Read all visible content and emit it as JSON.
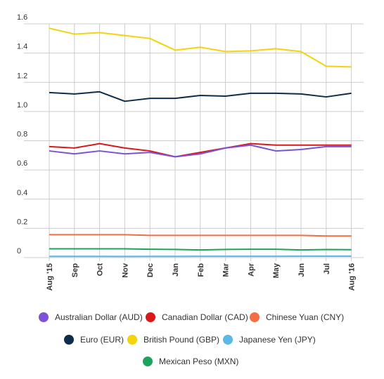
{
  "chart_data": {
    "type": "line",
    "title": "",
    "xlabel": "",
    "ylabel": "",
    "categories": [
      "Aug '15",
      "Sep",
      "Oct",
      "Nov",
      "Dec",
      "Jan",
      "Feb",
      "Mar",
      "Apr",
      "May",
      "Jun",
      "Jul",
      "Aug '16"
    ],
    "ylim": [
      0,
      1.6
    ],
    "yticks": [
      0,
      0.2,
      0.4,
      0.6,
      0.8,
      1.0,
      1.2,
      1.4,
      1.6
    ],
    "ytick_labels": [
      "0",
      "0.2",
      "0.4",
      "0.6",
      "0.8",
      "1.0",
      "1.2",
      "1.4",
      "1.6"
    ],
    "grid": true,
    "legend_position": "bottom",
    "series": [
      {
        "name": "Australian Dollar (AUD)",
        "color": "#7b52d8",
        "values": [
          0.73,
          0.71,
          0.73,
          0.71,
          0.72,
          0.69,
          0.71,
          0.75,
          0.77,
          0.73,
          0.74,
          0.76,
          0.76
        ]
      },
      {
        "name": "Canadian Dollar (CAD)",
        "color": "#d7191c",
        "values": [
          0.76,
          0.75,
          0.78,
          0.75,
          0.73,
          0.69,
          0.72,
          0.75,
          0.78,
          0.77,
          0.77,
          0.77,
          0.77
        ]
      },
      {
        "name": "Chinese Yuan (CNY)",
        "color": "#f46d43",
        "values": [
          0.157,
          0.157,
          0.157,
          0.157,
          0.152,
          0.152,
          0.152,
          0.152,
          0.152,
          0.152,
          0.152,
          0.148,
          0.148
        ]
      },
      {
        "name": "Euro (EUR)",
        "color": "#0d2d4c",
        "values": [
          1.13,
          1.12,
          1.135,
          1.07,
          1.09,
          1.09,
          1.11,
          1.105,
          1.125,
          1.125,
          1.12,
          1.1,
          1.125
        ]
      },
      {
        "name": "British Pound (GBP)",
        "color": "#f5d20e",
        "values": [
          1.57,
          1.53,
          1.54,
          1.52,
          1.5,
          1.42,
          1.44,
          1.41,
          1.415,
          1.43,
          1.41,
          1.31,
          1.305
        ]
      },
      {
        "name": "Japanese Yen (JPY)",
        "color": "#5cb8e6",
        "values": [
          0.0082,
          0.0083,
          0.0083,
          0.0081,
          0.0083,
          0.0085,
          0.0089,
          0.0089,
          0.0092,
          0.0091,
          0.0097,
          0.0097,
          0.0099
        ]
      },
      {
        "name": "Mexican Peso (MXN)",
        "color": "#1ea35a",
        "values": [
          0.06,
          0.06,
          0.06,
          0.06,
          0.057,
          0.056,
          0.052,
          0.056,
          0.057,
          0.057,
          0.052,
          0.055,
          0.054
        ]
      }
    ]
  }
}
